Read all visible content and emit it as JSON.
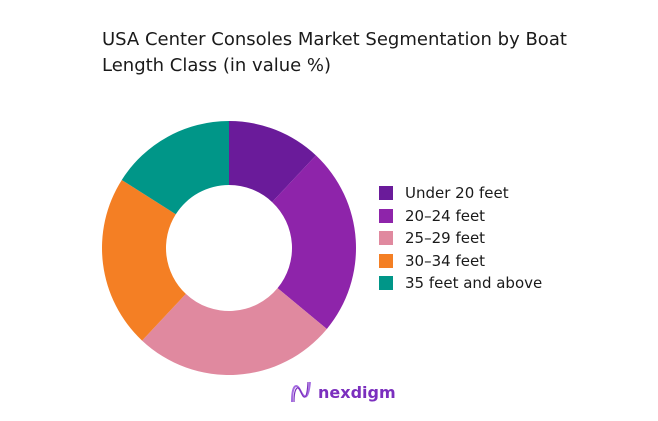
{
  "chart_data": {
    "type": "pie",
    "donut": true,
    "title": "USA Center Consoles Market Segmentation by Boat Length Class (in value %)",
    "categories": [
      "Under 20 feet",
      "20–24 feet",
      "25–29 feet",
      "30–34 feet",
      "35 feet and above"
    ],
    "values": [
      12,
      24,
      26,
      22,
      16
    ],
    "colors": [
      "#6a1b9a",
      "#8e24aa",
      "#e0899f",
      "#f47f24",
      "#009688"
    ],
    "legend_position": "right"
  },
  "logo": {
    "text": "nexdigm"
  }
}
